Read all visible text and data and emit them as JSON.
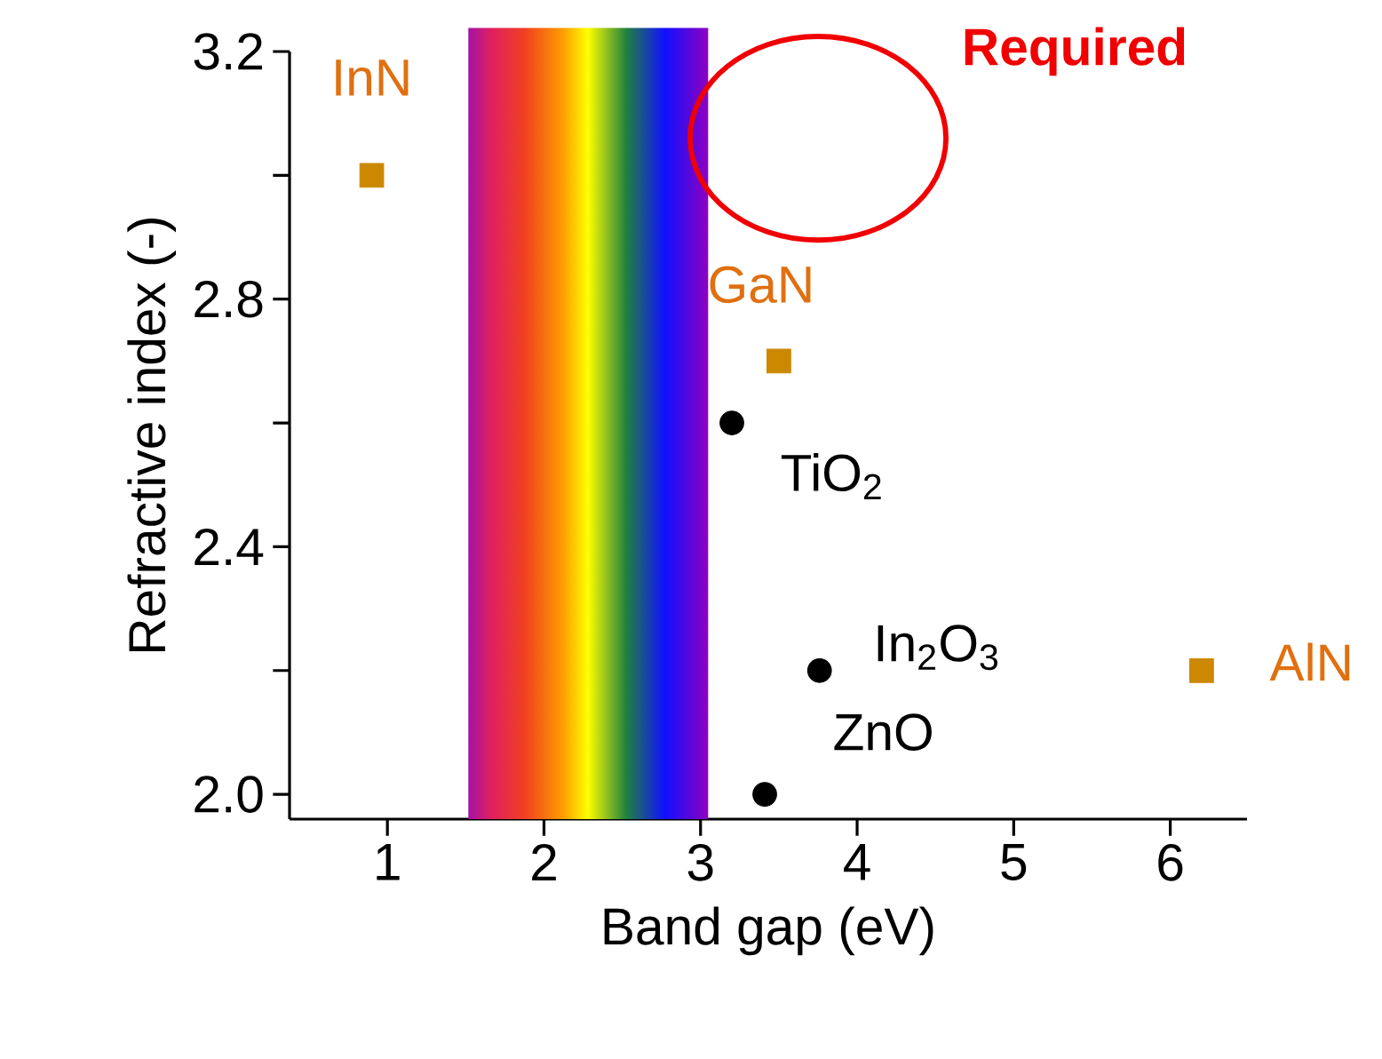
{
  "chart_data": {
    "type": "scatter",
    "xlabel": "Band gap (eV)",
    "ylabel": "Refractive index (-)",
    "xlim": [
      0.375,
      6.49
    ],
    "ylim": [
      1.96,
      3.2
    ],
    "xticks": [
      1,
      2,
      3,
      4,
      5,
      6
    ],
    "yticks": [
      {
        "value": 2,
        "label": "2.0"
      },
      {
        "value": 2.2,
        "label": null
      },
      {
        "value": 2.4,
        "label": "2.4"
      },
      {
        "value": 2.6,
        "label": null
      },
      {
        "value": 2.8,
        "label": "2.8"
      },
      {
        "value": 3.0,
        "label": null
      },
      {
        "value": 3.2,
        "label": "3.2"
      }
    ],
    "series": [
      {
        "color": "#cc8800",
        "marker": "square",
        "x": [
          0.9,
          3.5,
          6.2
        ],
        "values": [
          3.0,
          2.7,
          2.2
        ]
      },
      {
        "color": "#000000",
        "marker": "circle",
        "x": [
          3.2,
          3.76,
          3.41
        ],
        "values": [
          2.6,
          2.2,
          2.0
        ]
      }
    ],
    "bands": [
      {
        "axis": "x",
        "from": 1.51,
        "to": 3.05
      }
    ],
    "annotations": [
      {
        "text": "InN",
        "x": 0.9,
        "y": 3.0
      },
      {
        "text": "GaN",
        "x": 3.5,
        "y": 2.7
      },
      {
        "text": "AlN",
        "x": 6.2,
        "y": 2.2
      },
      {
        "text": "TiO$_{2}$",
        "x": 3.2,
        "y": 2.6
      },
      {
        "text": "In$_{2}$O$_{3}$",
        "x": 3.76,
        "y": 2.2
      },
      {
        "text": "ZnO",
        "x": 3.41,
        "y": 2.0
      },
      "Required"
    ]
  }
}
